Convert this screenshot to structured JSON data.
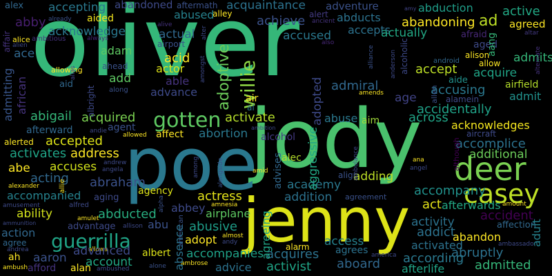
{
  "background": "#000000",
  "words": {
    "oliver": {
      "text": "oliver",
      "color": "#35b779"
    },
    "jody": {
      "text": "jody",
      "color": "#4ac16d"
    },
    "poe": {
      "text": "poe",
      "color": "#2a788e"
    },
    "jenny": {
      "text": "jenny",
      "color": "#dde318"
    },
    "deer": {
      "text": "deer",
      "color": "#7ad151"
    },
    "casey": {
      "text": "casey",
      "color": "#bddf26"
    },
    "guerrilla": {
      "text": "guerrilla",
      "color": "#20a486"
    },
    "gotten": {
      "text": "gotten",
      "color": "#5ec962"
    },
    "willie": {
      "text": "willie",
      "color": "#8fd744"
    },
    "adoptive": {
      "text": "adoptive",
      "color": "#6ccd5a"
    },
    "abandoned": {
      "text": "abandoned",
      "color": "#3e4a89"
    },
    "aftermath": {
      "text": "aftermath",
      "color": "#3b528b"
    },
    "acquaintance": {
      "text": "acquaintance",
      "color": "#2c728e"
    },
    "adventure": {
      "text": "adventure",
      "color": "#3b528b"
    },
    "abduction": {
      "text": "abduction",
      "color": "#1f9e89"
    },
    "active": {
      "text": "active",
      "color": "#22a884"
    },
    "accepting": {
      "text": "accepting",
      "color": "#2a788e"
    },
    "abused": {
      "text": "abused",
      "color": "#26828e"
    },
    "alley": {
      "text": "alley",
      "color": "#fde725"
    },
    "alert": {
      "text": "alert",
      "color": "#443a83"
    },
    "abducts": {
      "text": "abducts",
      "color": "#2c728e"
    },
    "abby": {
      "text": "abby",
      "color": "#481f70"
    },
    "aided": {
      "text": "aided",
      "color": "#f4e61e"
    },
    "achieve": {
      "text": "achieve",
      "color": "#3b528b"
    },
    "abandoning": {
      "text": "abandoning",
      "color": "#fde725"
    },
    "ad": {
      "text": "ad",
      "color": "#bddf26"
    },
    "agreed": {
      "text": "agreed",
      "color": "#fde725"
    },
    "acknowledge": {
      "text": "acknowledge",
      "color": "#2a788e"
    },
    "accepts": {
      "text": "accepts",
      "color": "#2c728e"
    },
    "accused": {
      "text": "accused",
      "color": "#2a788e"
    },
    "actually": {
      "text": "actually",
      "color": "#22a884"
    },
    "afraid": {
      "text": "afraid",
      "color": "#482878"
    },
    "admits": {
      "text": "admits",
      "color": "#35b779"
    },
    "ace": {
      "text": "ace",
      "color": "#31688e"
    },
    "adam": {
      "text": "adam",
      "color": "#5ec962"
    },
    "acid": {
      "text": "acid",
      "color": "#fde725"
    },
    "actor": {
      "text": "actor",
      "color": "#dde318"
    },
    "actual": {
      "text": "actual",
      "color": "#31688e"
    },
    "ahead": {
      "text": "ahead",
      "color": "#3b528b"
    },
    "add": {
      "text": "add",
      "color": "#5ec962"
    },
    "able": {
      "text": "able",
      "color": "#46337e"
    },
    "advance": {
      "text": "advance",
      "color": "#3e4a89"
    },
    "accept": {
      "text": "accept",
      "color": "#bddf26"
    },
    "acquire": {
      "text": "acquire",
      "color": "#20a486"
    },
    "aide": {
      "text": "aide",
      "color": "#21918c"
    },
    "airfield": {
      "text": "airfield",
      "color": "#b5de2b"
    },
    "accusing": {
      "text": "accusing",
      "color": "#2a788e"
    },
    "admiral": {
      "text": "admiral",
      "color": "#31688e"
    },
    "admit": {
      "text": "admit",
      "color": "#21918c"
    },
    "age": {
      "text": "age",
      "color": "#414487"
    },
    "accidentally": {
      "text": "accidentally",
      "color": "#1fa187"
    },
    "abigail": {
      "text": "abigail",
      "color": "#35b779"
    },
    "acquired": {
      "text": "acquired",
      "color": "#7ad151"
    },
    "activate": {
      "text": "activate",
      "color": "#b5de2b"
    },
    "abuse": {
      "text": "abuse",
      "color": "#2a788e"
    },
    "aim": {
      "text": "aim",
      "color": "#a0da39"
    },
    "across": {
      "text": "across",
      "color": "#20a486"
    },
    "acknowledges": {
      "text": "acknowledges",
      "color": "#f4e61e"
    },
    "agent": {
      "text": "agent",
      "color": "#3b528b"
    },
    "afterward": {
      "text": "afterward",
      "color": "#31688e"
    },
    "affect": {
      "text": "affect",
      "color": "#fde725"
    },
    "abortion": {
      "text": "abortion",
      "color": "#2a788e"
    },
    "alcohol": {
      "text": "alcohol",
      "color": "#443a83"
    },
    "accomplice": {
      "text": "accomplice",
      "color": "#2c728e"
    },
    "accepted": {
      "text": "accepted",
      "color": "#dde318"
    },
    "address": {
      "text": "address",
      "color": "#fde725"
    },
    "additional": {
      "text": "additional",
      "color": "#6ccd5a"
    },
    "activates": {
      "text": "activates",
      "color": "#20a486"
    },
    "accuses": {
      "text": "accuses",
      "color": "#d2e21b"
    },
    "abe": {
      "text": "abe",
      "color": "#fde725"
    },
    "alec": {
      "text": "alec",
      "color": "#b5de2b"
    },
    "accomplish": {
      "text": "accomplish",
      "color": "#1f9e89"
    },
    "acting": {
      "text": "acting",
      "color": "#31688e"
    },
    "abraham": {
      "text": "abraham",
      "color": "#3b528b"
    },
    "adding": {
      "text": "adding",
      "color": "#bddf26"
    },
    "academy": {
      "text": "academy",
      "color": "#2a788e"
    },
    "accompany": {
      "text": "accompany",
      "color": "#21918c"
    },
    "accompanied": {
      "text": "accompanied",
      "color": "#26828e"
    },
    "actress": {
      "text": "actress",
      "color": "#e5e419"
    },
    "addition": {
      "text": "addition",
      "color": "#2c728e"
    },
    "act": {
      "text": "act",
      "color": "#e5e419"
    },
    "afterwards": {
      "text": "afterwards",
      "color": "#22a884"
    },
    "agency": {
      "text": "agency",
      "color": "#dde318"
    },
    "abbey": {
      "text": "abbey",
      "color": "#3e4a89"
    },
    "ability": {
      "text": "ability",
      "color": "#d2e21b"
    },
    "abducted": {
      "text": "abducted",
      "color": "#28ae80"
    },
    "abusive": {
      "text": "abusive",
      "color": "#1f9e89"
    },
    "airplane": {
      "text": "airplane",
      "color": "#5ec962"
    },
    "accident": {
      "text": "accident",
      "color": "#440154"
    },
    "activity": {
      "text": "activity",
      "color": "#2c728e"
    },
    "affection": {
      "text": "affection",
      "color": "#31688e"
    },
    "advantage": {
      "text": "advantage",
      "color": "#3e4a89"
    },
    "abu": {
      "text": "abu",
      "color": "#3b528b"
    },
    "adopt": {
      "text": "adopt",
      "color": "#fde725"
    },
    "addict": {
      "text": "addict",
      "color": "#2c728e"
    },
    "action": {
      "text": "action",
      "color": "#31688e"
    },
    "abandon": {
      "text": "abandon",
      "color": "#fde725"
    },
    "agree": {
      "text": "agree",
      "color": "#31688e"
    },
    "access": {
      "text": "access",
      "color": "#26828e"
    },
    "activated": {
      "text": "activated",
      "color": "#2c728e"
    },
    "aaron": {
      "text": "aaron",
      "color": "#3b528b"
    },
    "advanced": {
      "text": "advanced",
      "color": "#3e4a89"
    },
    "albert": {
      "text": "albert",
      "color": "#dde318"
    },
    "accompanies": {
      "text": "accompanies",
      "color": "#1fa187"
    },
    "acquires": {
      "text": "acquires",
      "color": "#2c728e"
    },
    "agrees": {
      "text": "agrees",
      "color": "#2c728e"
    },
    "abruptly": {
      "text": "abruptly",
      "color": "#2c728e"
    },
    "according": {
      "text": "according",
      "color": "#2a788e"
    },
    "ah": {
      "text": "ah",
      "color": "#fde725"
    },
    "afford": {
      "text": "afford",
      "color": "#46337e"
    },
    "alan": {
      "text": "alan",
      "color": "#fde725"
    },
    "account": {
      "text": "account",
      "color": "#22a884"
    },
    "advice": {
      "text": "advice",
      "color": "#2c728e"
    },
    "activist": {
      "text": "activist",
      "color": "#20a486"
    },
    "aboard": {
      "text": "aboard",
      "color": "#31688e"
    },
    "afterlife": {
      "text": "afterlife",
      "color": "#20a486"
    },
    "admitted": {
      "text": "admitted",
      "color": "#35b779"
    },
    "aggressive": {
      "text": "aggressive",
      "color": "#22a884"
    },
    "adopted": {
      "text": "adopted",
      "color": "#3e4a89"
    },
    "agreeing": {
      "text": "agreeing",
      "color": "#20a486"
    },
    "absence": {
      "text": "absence",
      "color": "#2c728e"
    },
    "adult": {
      "text": "adult",
      "color": "#26828e"
    },
    "admitting": {
      "text": "admitting",
      "color": "#39568c"
    },
    "african": {
      "text": "african",
      "color": "#46337e"
    },
    "aang": {
      "text": "aang",
      "color": "#35b779"
    },
    "aged": {
      "text": "aged",
      "color": "#3e4a89"
    },
    "advises": {
      "text": "advises",
      "color": "#31688e"
    },
    "alex": {
      "text": "alex",
      "color": "#31688e"
    },
    "air": {
      "text": "air",
      "color": "#fde725"
    },
    "al": {
      "text": "al",
      "color": "#2a788e"
    },
    "alcoholic": {
      "text": "alcoholic",
      "color": "#3e4a89"
    },
    "amy": {
      "text": "amy",
      "color": "#414487"
    },
    "already": {
      "text": "already",
      "color": "#3b528b"
    },
    "affair": {
      "text": "affair",
      "color": "#46337e"
    },
    "alice": {
      "text": "alice",
      "color": "#fde725"
    },
    "ambitious": {
      "text": "ambitious",
      "color": "#46337e"
    },
    "always": {
      "text": "always",
      "color": "#482878"
    },
    "alien": {
      "text": "alien",
      "color": "#3e4a89"
    },
    "alive": {
      "text": "alive",
      "color": "#46337e"
    },
    "airport": {
      "text": "airport",
      "color": "#3b528b"
    },
    "alter": {
      "text": "alter",
      "color": "#3e4a89"
    },
    "ancient": {
      "text": "ancient",
      "color": "#46337e"
    },
    "also": {
      "text": "also",
      "color": "#482878"
    },
    "altar": {
      "text": "altar",
      "color": "#443a83"
    },
    "alongside": {
      "text": "alongside",
      "color": "#3b528b"
    },
    "alison": {
      "text": "alison",
      "color": "#fde725"
    },
    "allow": {
      "text": "allow",
      "color": "#fde725"
    },
    "alternate": {
      "text": "alternate",
      "color": "#46337e"
    },
    "android": {
      "text": "android",
      "color": "#31688e"
    },
    "anderson": {
      "text": "anderson",
      "color": "#3e4a89"
    },
    "allowing": {
      "text": "allowing",
      "color": "#fde725"
    },
    "alias": {
      "text": "alias",
      "color": "#414487"
    },
    "amongst": {
      "text": "amongst",
      "color": "#3e4a89"
    },
    "alliance": {
      "text": "alliance",
      "color": "#3b528b"
    },
    "aid": {
      "text": "aid",
      "color": "#31688e"
    },
    "albright": {
      "text": "albright",
      "color": "#3e4a89"
    },
    "along": {
      "text": "along",
      "color": "#3b528b"
    },
    "amends": {
      "text": "amends",
      "color": "#fde725"
    },
    "allen": {
      "text": "allen",
      "color": "#3b528b"
    },
    "alamein": {
      "text": "alamein",
      "color": "#3e4a89"
    },
    "ambition": {
      "text": "ambition",
      "color": "#3e4a89"
    },
    "andie": {
      "text": "andie",
      "color": "#3e4a89"
    },
    "allowed": {
      "text": "allowed",
      "color": "#fde725"
    },
    "aircraft": {
      "text": "aircraft",
      "color": "#3e4a89"
    },
    "alerted": {
      "text": "alerted",
      "color": "#fde725"
    },
    "although": {
      "text": "although",
      "color": "#440154"
    },
    "ambulance": {
      "text": "ambulance",
      "color": "#3e4a89"
    },
    "among": {
      "text": "among",
      "color": "#3e4a89"
    },
    "andrew": {
      "text": "andrew",
      "color": "#3e4a89"
    },
    "angela": {
      "text": "angela",
      "color": "#3e4a89"
    },
    "amid": {
      "text": "amid",
      "color": "#fde725"
    },
    "ana": {
      "text": "ana",
      "color": "#fde725"
    },
    "angel": {
      "text": "angel",
      "color": "#3e4a89"
    },
    "align": {
      "text": "align",
      "color": "#3b528b"
    },
    "alexander": {
      "text": "alexander",
      "color": "#fde725"
    },
    "allie": {
      "text": "allie",
      "color": "#fde725"
    },
    "aging": {
      "text": "aging",
      "color": "#3e4a89"
    },
    "alfred": {
      "text": "alfred",
      "color": "#3e4a89"
    },
    "alpha": {
      "text": "alpha",
      "color": "#3b528b"
    },
    "amnesia": {
      "text": "amnesia",
      "color": "#fde725"
    },
    "amusement": {
      "text": "amusement",
      "color": "#3e4a89"
    },
    "agreement": {
      "text": "agreement",
      "color": "#3b528b"
    },
    "amount": {
      "text": "amount",
      "color": "#fde725"
    },
    "ammunition": {
      "text": "ammunition",
      "color": "#3e4a89"
    },
    "amulet": {
      "text": "amulet",
      "color": "#fde725"
    },
    "allison": {
      "text": "allison",
      "color": "#3e4a89"
    },
    "american": {
      "text": "american",
      "color": "#3b528b"
    },
    "almost": {
      "text": "almost",
      "color": "#fde725"
    },
    "andy": {
      "text": "andy",
      "color": "#3e4a89"
    },
    "alarm": {
      "text": "alarm",
      "color": "#fde725"
    },
    "andrea": {
      "text": "andrea",
      "color": "#3e4a89"
    },
    "allows": {
      "text": "allows",
      "color": "#fde725"
    },
    "ambrose": {
      "text": "ambrose",
      "color": "#fde725"
    },
    "alone": {
      "text": "alone",
      "color": "#3b528b"
    },
    "america": {
      "text": "america",
      "color": "#3e4a89"
    },
    "ambassador": {
      "text": "ambassador",
      "color": "#3e4a89"
    },
    "ambush": {
      "text": "ambush",
      "color": "#fde725"
    },
    "ambushed": {
      "text": "ambushed",
      "color": "#3e4a89"
    }
  }
}
